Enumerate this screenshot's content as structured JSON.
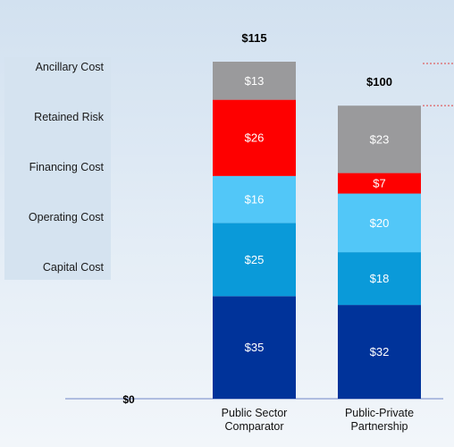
{
  "chart_data": {
    "type": "bar",
    "stacked": true,
    "categories": [
      "Public Sector\nComparator",
      "Public-Private\nPartnership"
    ],
    "series": [
      {
        "name": "Capital Cost",
        "values": [
          35,
          32
        ],
        "color": "#00339a",
        "label_values": [
          "$35",
          "$32"
        ]
      },
      {
        "name": "Operating Cost",
        "values": [
          25,
          18
        ],
        "color": "#0a9ad9",
        "label_values": [
          "$25",
          "$18"
        ]
      },
      {
        "name": "Financing Cost",
        "values": [
          16,
          20
        ],
        "color": "#52c7f8",
        "label_values": [
          "$16",
          "$20"
        ]
      },
      {
        "name": "Retained Risk",
        "values": [
          26,
          7
        ],
        "color": "#fe0000",
        "label_values": [
          "$26",
          "$7"
        ]
      },
      {
        "name": "Ancillary Cost",
        "values": [
          13,
          23
        ],
        "color": "#9a9a9c",
        "label_values": [
          "$13",
          "$23"
        ]
      }
    ],
    "totals": [
      "$115",
      "$100"
    ],
    "zero_label": "$0",
    "legend_order": [
      "Ancillary Cost",
      "Retained Risk",
      "Financing Cost",
      "Operating Cost",
      "Capital Cost"
    ],
    "legend_position": "left",
    "grid": false,
    "ylim": [
      0,
      115
    ]
  }
}
